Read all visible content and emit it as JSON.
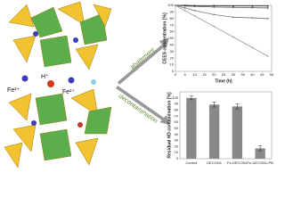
{
  "labels": {
    "ions": [
      "Fe³⁺",
      "H⁺",
      "Fe²⁺"
    ],
    "arrows": [
      "abatement",
      "decontamination"
    ]
  },
  "chart_data": [
    {
      "type": "line",
      "x_label": "Time (h)",
      "y_label": "CEES concentration [%]",
      "x": [
        0,
        5,
        10,
        20,
        30,
        40,
        48
      ],
      "series": [
        {
          "color": "#222222",
          "values": [
            100,
            100,
            99.5,
            99.5,
            99,
            99,
            99
          ]
        },
        {
          "color": "#555555",
          "values": [
            100,
            99,
            98.5,
            97.5,
            97,
            96.5,
            96
          ]
        },
        {
          "color": "#777777",
          "values": [
            100,
            96,
            92,
            86,
            82,
            81,
            80
          ]
        },
        {
          "color": "#999999",
          "values": [
            100,
            92,
            84,
            68,
            52,
            36,
            23
          ]
        }
      ],
      "xlim": [
        0,
        50
      ],
      "xticks": [
        0,
        5,
        10,
        15,
        20,
        25,
        30,
        35,
        40,
        45,
        50
      ],
      "ylim": [
        0,
        100
      ],
      "yticks": [
        0,
        10,
        20,
        30,
        40,
        50,
        60,
        70,
        80,
        90,
        100
      ],
      "grid": false
    },
    {
      "type": "bar",
      "y_label": "Residual HD contamination [%]",
      "categories": [
        "Control",
        "DECON1",
        "Fe-DECON1",
        "Fe-DECON1-PB"
      ],
      "values": [
        100,
        89,
        86,
        17
      ],
      "errors": [
        3,
        4,
        4,
        4
      ],
      "color": "#888888",
      "ylim": [
        0,
        110
      ],
      "yticks": [
        0,
        10,
        20,
        30,
        40,
        50,
        60,
        70,
        80,
        90,
        100
      ],
      "grid": false
    }
  ]
}
